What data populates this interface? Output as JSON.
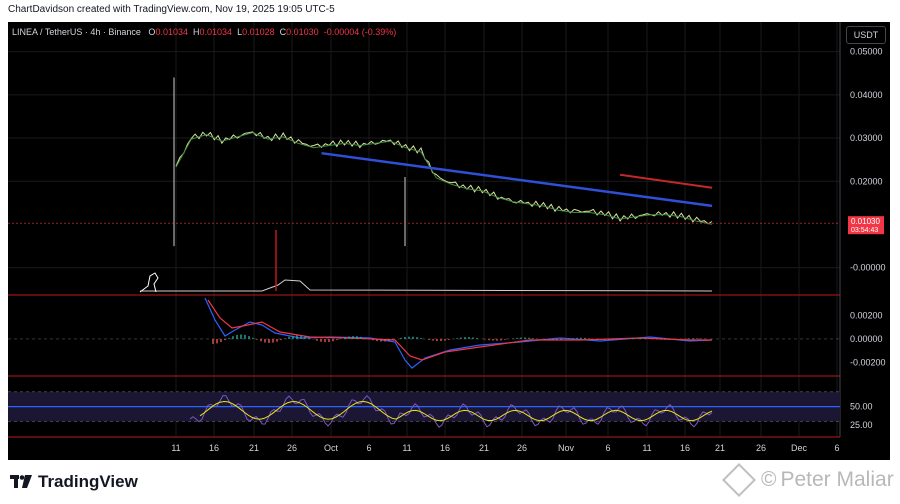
{
  "credit": "ChartDavidson created with TradingView.com, Nov 19, 2025 19:05 UTC-5",
  "legend": {
    "symbol": "LINEA / TetherUS · 4h · Binance",
    "o_label": "O",
    "o": "0.01034",
    "h_label": "H",
    "h": "0.01034",
    "l_label": "L",
    "l": "0.01028",
    "c_label": "C",
    "c": "0.01030",
    "change": "-0.00004 (-0.39%)"
  },
  "currency_button": "USDT",
  "brand": "TradingView",
  "watermark": "Peter Maliar",
  "colors": {
    "background": "#000000",
    "price_line": "#e0e0a0",
    "ma": "#3e8e41",
    "blue_trend": "#2f4fd8",
    "red_trend": "#c62828",
    "macd": "#2962ff",
    "signal": "#f23645",
    "rsi": "#7e57c2",
    "rsi_ma": "#e6e61a",
    "current_price_tag": "#f23645"
  },
  "chart_data": [
    {
      "type": "line",
      "panel": "price",
      "series_description": "",
      "x_ticks": [
        "11",
        "16",
        "21",
        "26",
        "Oct",
        "6",
        "11",
        "16",
        "21",
        "26",
        "Nov",
        "6",
        "11",
        "16",
        "21",
        "26",
        "Dec",
        "6"
      ],
      "y_ticks": [
        "0.05000",
        "0.04000",
        "0.03000",
        "0.02000",
        "-0.00000"
      ],
      "ylim": [
        -0.004,
        0.055
      ],
      "current_price": "0.01030",
      "countdown": "03:54:43",
      "price_x": [
        0,
        2,
        4,
        6,
        8,
        10,
        12,
        14,
        16,
        18,
        20,
        22,
        24,
        26,
        28,
        30,
        32,
        34,
        36,
        38,
        40,
        42,
        44,
        46,
        48,
        50,
        52,
        54,
        56,
        58,
        60,
        62,
        64,
        66,
        68,
        70
      ],
      "price": [
        0.0235,
        0.03,
        0.031,
        0.0295,
        0.0305,
        0.0315,
        0.03,
        0.0305,
        0.029,
        0.028,
        0.0285,
        0.029,
        0.0285,
        0.029,
        0.0295,
        0.028,
        0.027,
        0.021,
        0.0195,
        0.0185,
        0.018,
        0.0165,
        0.0155,
        0.015,
        0.0145,
        0.0135,
        0.013,
        0.013,
        0.0125,
        0.0115,
        0.012,
        0.0125,
        0.0125,
        0.012,
        0.011,
        0.0103
      ],
      "blue_trendline": [
        [
          0.0265,
          19
        ],
        [
          0.0143,
          70
        ]
      ],
      "red_trendline": [
        [
          0.0215,
          58
        ],
        [
          0.0185,
          70
        ]
      ],
      "spike_high": [
        0.044,
        0
      ],
      "spike_low": [
        0.005,
        0
      ]
    },
    {
      "type": "line",
      "panel": "macd",
      "y_ticks": [
        "0.00200",
        "0.00000",
        "-0.00200"
      ],
      "ylim": [
        -0.0028,
        0.0033
      ]
    },
    {
      "type": "line",
      "panel": "rsi",
      "y_ticks": [
        "50.00",
        "25.00"
      ],
      "ylim": [
        13,
        86
      ],
      "bands": [
        30,
        50,
        70
      ]
    }
  ]
}
